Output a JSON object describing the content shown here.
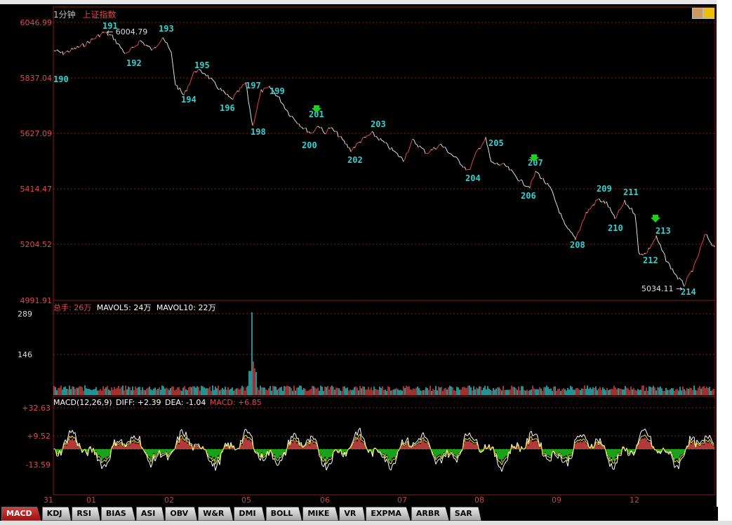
{
  "window": {
    "title": "1分钟",
    "index_name": "上证指数"
  },
  "price_panel": {
    "y_labels": [
      "6046.99",
      "5837.04",
      "5627.09",
      "5414.47",
      "5204.52",
      "4991.91"
    ],
    "high_label": "6004.79",
    "low_label": "5034.11",
    "wave_labels": [
      "190",
      "191",
      "192",
      "193",
      "194",
      "195",
      "196",
      "197",
      "198",
      "199",
      "200",
      "201",
      "202",
      "203",
      "204",
      "205",
      "206",
      "207",
      "208",
      "209",
      "210",
      "211",
      "212",
      "213",
      "214"
    ]
  },
  "volume_panel": {
    "title": "总手",
    "value": "26万",
    "mavol5": "MAVOL5: 24万",
    "mavol10": "MAVOL10: 22万",
    "y_labels": [
      "289",
      "146"
    ]
  },
  "macd_panel": {
    "title": "MACD(12,26,9)",
    "diff": "DIFF: +2.39",
    "dea": "DEA: -1.04",
    "macd": "MACD: +6.85",
    "y_labels": [
      "+32.63",
      "+9.52",
      "-13.59"
    ]
  },
  "x_labels": [
    "31",
    "01",
    "02",
    "05",
    "06",
    "07",
    "08",
    "09",
    "12"
  ],
  "tabs": [
    "MACD",
    "KDJ",
    "RSI",
    "BIAS",
    "ASI",
    "OBV",
    "W&R",
    "DMI",
    "BOLL",
    "MIKE",
    "VR",
    "EXPMA",
    "ARBR",
    "SAR"
  ],
  "active_tab": "MACD",
  "colors": {
    "up": "#e04848",
    "down": "#33d0d0",
    "grid": "#8a1c1c",
    "label": "#33d0d0",
    "macd_pos": "#e04848",
    "macd_neg": "#22cc22"
  }
}
